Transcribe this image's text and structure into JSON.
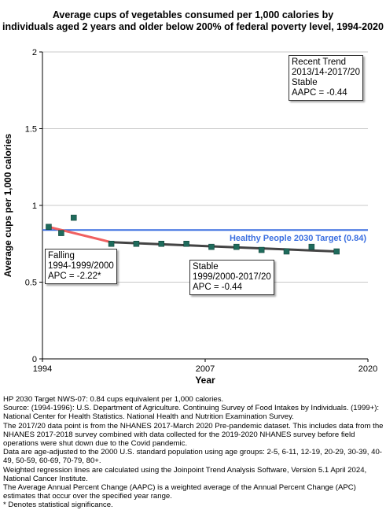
{
  "chart_data": {
    "type": "line",
    "title_lines": [
      "Average cups of vegetables consumed per 1,000 calories by",
      "individuals aged 2 years and older below 200% of federal poverty level, 1994-2020"
    ],
    "xlabel": "Year",
    "ylabel": "Average cups per 1,000 calories",
    "xlim": [
      1994,
      2020
    ],
    "ylim": [
      0,
      2
    ],
    "x_ticks": [
      "1994",
      "2007",
      "2020"
    ],
    "y_ticks": [
      "0",
      "0.5",
      "1",
      "1.5",
      "2"
    ],
    "grid": true,
    "observed": {
      "x": [
        1994.5,
        1995.5,
        1996.5,
        1999.5,
        2001.5,
        2003.5,
        2005.5,
        2007.5,
        2009.5,
        2011.5,
        2013.5,
        2015.5,
        2017.5
      ],
      "y": [
        0.86,
        0.82,
        0.92,
        0.75,
        0.75,
        0.75,
        0.75,
        0.73,
        0.73,
        0.71,
        0.7,
        0.73,
        0.7
      ]
    },
    "trend_segments": [
      {
        "color": "#f06060",
        "x": [
          1994.5,
          1999.5
        ],
        "y": [
          0.86,
          0.76
        ]
      },
      {
        "color": "#444444",
        "x": [
          1999.5,
          2017.5
        ],
        "y": [
          0.76,
          0.7
        ]
      }
    ],
    "target": {
      "value": 0.84,
      "label": "Healthy People 2030 Target (0.84)",
      "color": "#3b6fe0"
    },
    "marker_color": "#1f6b5c",
    "annotations": [
      {
        "id": "recent",
        "lines": [
          "Recent Trend",
          "2013/14-2017/20",
          "Stable",
          "AAPC = -0.44"
        ]
      },
      {
        "id": "falling",
        "lines": [
          "Falling",
          "1994-1999/2000",
          "APC = -2.22*"
        ]
      },
      {
        "id": "stable",
        "lines": [
          "Stable",
          "1999/2000-2017/20",
          "APC = -0.44"
        ]
      }
    ]
  },
  "footnotes": [
    "HP 2030 Target NWS-07: 0.84 cups equivalent per 1,000 calories.",
    "Source: (1994-1996): U.S. Department of Agriculture. Continuing Survey of Food Intakes by Individuals. (1999+): National Center for Health Statistics. National Health and Nutrition Examination Survey.",
    "The 2017/20 data point is from the NHANES 2017-March 2020 Pre-pandemic dataset. This includes data from the NHANES 2017-2018 survey combined with data collected for the 2019-2020 NHANES survey before field operations were shut down due to the Covid pandemic.",
    "Data are age-adjusted to the 2000 U.S. standard population using age groups: 2-5, 6-11, 12-19, 20-29, 30-39, 40-49, 50-59, 60-69, 70-79, 80+.",
    "Weighted regression lines are calculated using the Joinpoint Trend Analysis Software, Version 5.1 April 2024, National Cancer Institute.",
    "The Average Annual Percent Change (AAPC) is a weighted average of the Annual Percent Change (APC) estimates that occur over the specified year range.",
    "* Denotes statistical significance."
  ]
}
